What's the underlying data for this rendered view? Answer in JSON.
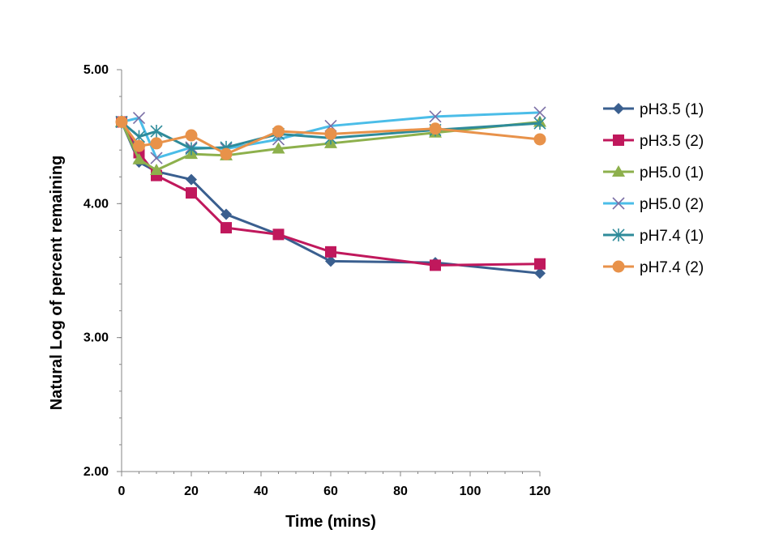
{
  "chart_data": {
    "type": "line",
    "title": "",
    "xlabel": "Time (mins)",
    "ylabel": "Natural Log of percent remaining",
    "xlim": [
      0,
      120
    ],
    "ylim": [
      2.0,
      5.0
    ],
    "x_ticks": [
      "0",
      "20",
      "40",
      "60",
      "80",
      "100",
      "120"
    ],
    "y_ticks": [
      "2.00",
      "3.00",
      "4.00",
      "5.00"
    ],
    "grid": false,
    "legend_position": "right",
    "series": [
      {
        "name": "pH3.5 (1)",
        "color": "#3A5F8F",
        "marker": "diamond",
        "x": [
          0,
          5,
          10,
          20,
          30,
          45,
          60,
          90,
          120
        ],
        "y": [
          4.61,
          4.31,
          4.24,
          4.18,
          3.92,
          3.77,
          3.57,
          3.56,
          3.48
        ]
      },
      {
        "name": "pH3.5 (2)",
        "color": "#C0185C",
        "marker": "square",
        "x": [
          0,
          5,
          10,
          20,
          30,
          45,
          60,
          90,
          120
        ],
        "y": [
          4.61,
          4.38,
          4.21,
          4.08,
          3.82,
          3.77,
          3.64,
          3.54,
          3.55
        ]
      },
      {
        "name": "pH5.0 (1)",
        "color": "#8DB04C",
        "marker": "triangle",
        "x": [
          0,
          5,
          10,
          20,
          30,
          45,
          60,
          90,
          120
        ],
        "y": [
          4.61,
          4.33,
          4.25,
          4.37,
          4.36,
          4.41,
          4.45,
          4.53,
          4.61
        ]
      },
      {
        "name": "pH5.0 (2)",
        "color": "#4BBDE8",
        "marker": "x",
        "x": [
          0,
          5,
          10,
          20,
          30,
          45,
          60,
          90,
          120
        ],
        "y": [
          4.61,
          4.64,
          4.34,
          4.42,
          4.41,
          4.48,
          4.58,
          4.65,
          4.68
        ]
      },
      {
        "name": "pH7.4 (1)",
        "color": "#2E8B9A",
        "marker": "star",
        "x": [
          0,
          5,
          10,
          20,
          30,
          45,
          60,
          90,
          120
        ],
        "y": [
          4.61,
          4.5,
          4.54,
          4.41,
          4.42,
          4.52,
          4.49,
          4.55,
          4.6
        ]
      },
      {
        "name": "pH7.4 (2)",
        "color": "#E8924A",
        "marker": "circle",
        "x": [
          0,
          5,
          10,
          20,
          30,
          45,
          60,
          90,
          120
        ],
        "y": [
          4.61,
          4.43,
          4.45,
          4.51,
          4.37,
          4.54,
          4.52,
          4.56,
          4.48
        ]
      }
    ]
  }
}
